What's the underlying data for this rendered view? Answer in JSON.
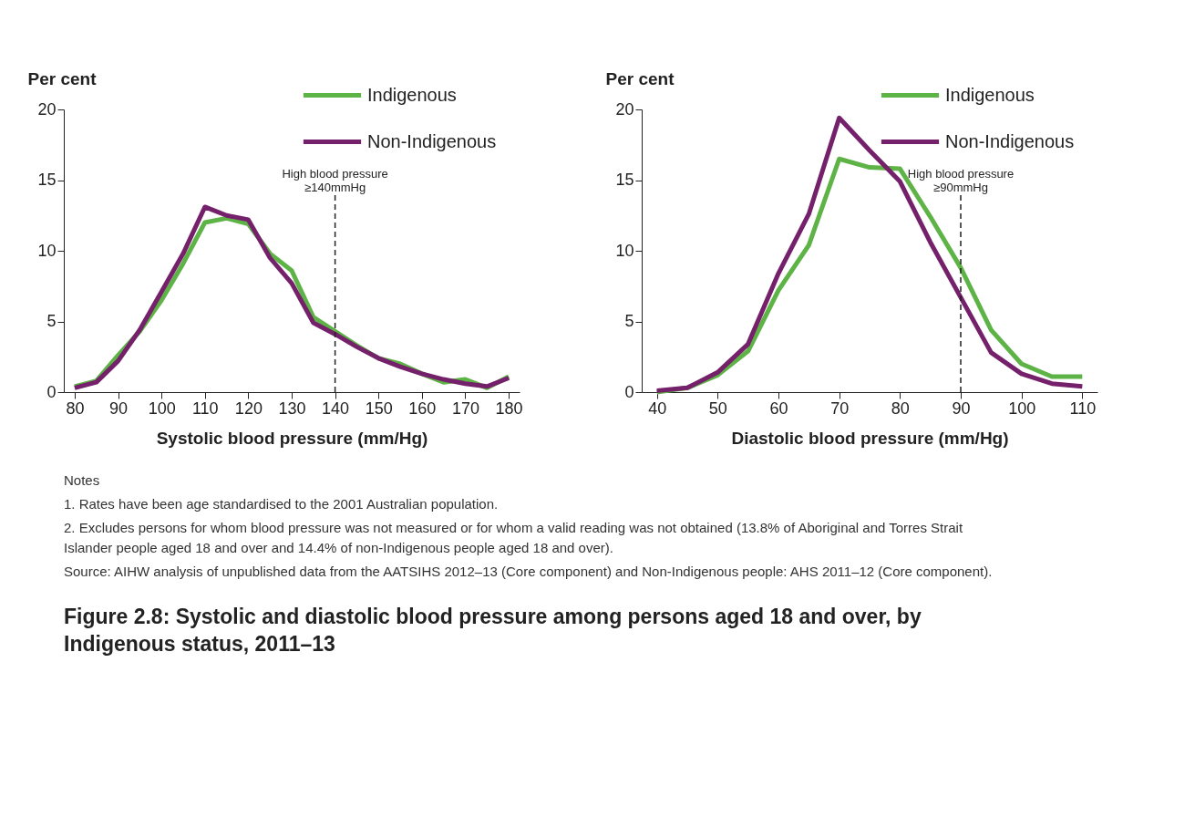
{
  "chart_data": [
    {
      "type": "line",
      "title": "Figure 2.8: Systolic and diastolic blood pressure among persons aged 18 and over, by Indigenous status, 2011–13",
      "annotations": [
        "Notes",
        "1. Rates have been age standardised to the 2001 Australian population.",
        "2. Excludes persons for whom blood pressure was not measured or for whom a valid reading was not obtained (13.8% of Aboriginal and Torres Strait Islander people aged 18 and over and 14.4% of non-Indigenous people aged 18 and over).",
        "Source: AIHW analysis of unpublished data from the AATSIHS 2012–13 (Core component) and Non-Indigenous people: AHS 2011–12 (Core component)."
      ],
      "xlabel": "Systolic blood pressure (mm/Hg)",
      "ylabel": "Per cent",
      "x": [
        80,
        85,
        90,
        95,
        100,
        105,
        110,
        115,
        120,
        125,
        130,
        135,
        140,
        145,
        150,
        155,
        160,
        165,
        170,
        175,
        180
      ],
      "series": [
        {
          "name": "Indigenous",
          "color": "#5db346",
          "values": [
            0.4,
            0.8,
            2.6,
            4.3,
            6.5,
            9.1,
            12.0,
            12.3,
            11.9,
            9.8,
            8.6,
            5.3,
            4.3,
            3.3,
            2.4,
            2.0,
            1.3,
            0.7,
            0.9,
            0.3,
            1.1
          ]
        },
        {
          "name": "Non-Indigenous",
          "color": "#74206a",
          "values": [
            0.3,
            0.7,
            2.2,
            4.4,
            7.1,
            9.8,
            13.1,
            12.5,
            12.2,
            9.5,
            7.7,
            4.9,
            4.1,
            3.2,
            2.4,
            1.8,
            1.3,
            0.9,
            0.6,
            0.4,
            1.0
          ]
        }
      ],
      "xlim": [
        77.5,
        182.5
      ],
      "xticks": [
        80,
        90,
        100,
        110,
        120,
        130,
        140,
        150,
        160,
        170,
        180
      ],
      "ylim": [
        0,
        20
      ],
      "yticks": [
        0,
        5,
        10,
        15,
        20
      ],
      "legend": "top right",
      "ref_lines": [
        {
          "axis": "x",
          "value": 140,
          "label": "High blood pressure\n≥140mmHg",
          "line_style": "dashed"
        }
      ]
    },
    {
      "type": "line",
      "xlabel": "Diastolic blood pressure (mm/Hg)",
      "ylabel": "Per cent",
      "x": [
        40,
        45,
        50,
        55,
        60,
        65,
        70,
        75,
        80,
        85,
        90,
        95,
        100,
        105,
        110
      ],
      "series": [
        {
          "name": "Indigenous",
          "color": "#5db346",
          "values": [
            0.0,
            0.3,
            1.2,
            2.9,
            7.2,
            10.4,
            16.5,
            15.9,
            15.8,
            12.4,
            8.8,
            4.4,
            2.0,
            1.1,
            1.1
          ]
        },
        {
          "name": "Non-Indigenous",
          "color": "#74206a",
          "values": [
            0.1,
            0.3,
            1.4,
            3.4,
            8.4,
            12.6,
            19.4,
            17.1,
            14.9,
            10.6,
            6.7,
            2.8,
            1.3,
            0.6,
            0.4
          ]
        }
      ],
      "xlim": [
        37.5,
        112.5
      ],
      "xticks": [
        40,
        50,
        60,
        70,
        80,
        90,
        100,
        110
      ],
      "ylim": [
        0,
        20
      ],
      "yticks": [
        0,
        5,
        10,
        15,
        20
      ],
      "legend": "top right",
      "ref_lines": [
        {
          "axis": "x",
          "value": 90,
          "label": "High blood pressure\n≥90mmHg",
          "line_style": "dashed"
        }
      ]
    }
  ]
}
